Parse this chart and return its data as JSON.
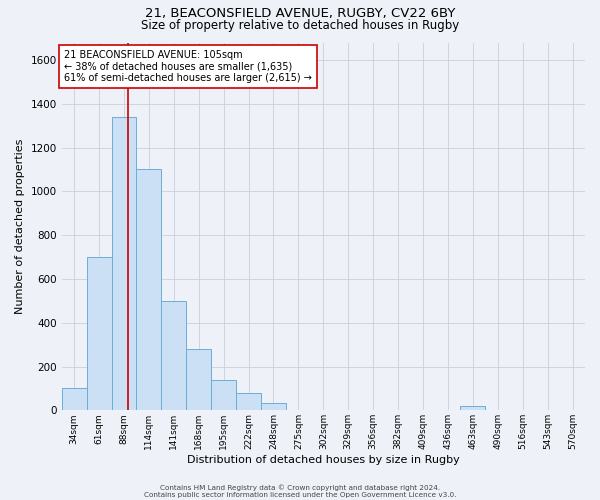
{
  "title_line1": "21, BEACONSFIELD AVENUE, RUGBY, CV22 6BY",
  "title_line2": "Size of property relative to detached houses in Rugby",
  "xlabel": "Distribution of detached houses by size in Rugby",
  "ylabel": "Number of detached properties",
  "bar_labels": [
    "34sqm",
    "61sqm",
    "88sqm",
    "114sqm",
    "141sqm",
    "168sqm",
    "195sqm",
    "222sqm",
    "248sqm",
    "275sqm",
    "302sqm",
    "329sqm",
    "356sqm",
    "382sqm",
    "409sqm",
    "436sqm",
    "463sqm",
    "490sqm",
    "516sqm",
    "543sqm",
    "570sqm"
  ],
  "bar_values": [
    100,
    700,
    1340,
    1100,
    500,
    280,
    140,
    80,
    35,
    0,
    0,
    0,
    0,
    0,
    0,
    0,
    20,
    0,
    0,
    0,
    0
  ],
  "bar_color": "#cce0f5",
  "bar_edge_color": "#6aaed6",
  "bar_edge_width": 0.7,
  "red_line_x": 2.15,
  "red_line_color": "#cc0000",
  "annotation_text": "21 BEACONSFIELD AVENUE: 105sqm\n← 38% of detached houses are smaller (1,635)\n61% of semi-detached houses are larger (2,615) →",
  "annotation_box_edge_color": "#cc0000",
  "annotation_box_face_color": "#ffffff",
  "ylim": [
    0,
    1680
  ],
  "yticks": [
    0,
    200,
    400,
    600,
    800,
    1000,
    1200,
    1400,
    1600
  ],
  "grid_color": "#c8d0dc",
  "background_color": "#eef2f8",
  "footer_line1": "Contains HM Land Registry data © Crown copyright and database right 2024.",
  "footer_line2": "Contains public sector information licensed under the Open Government Licence v3.0."
}
